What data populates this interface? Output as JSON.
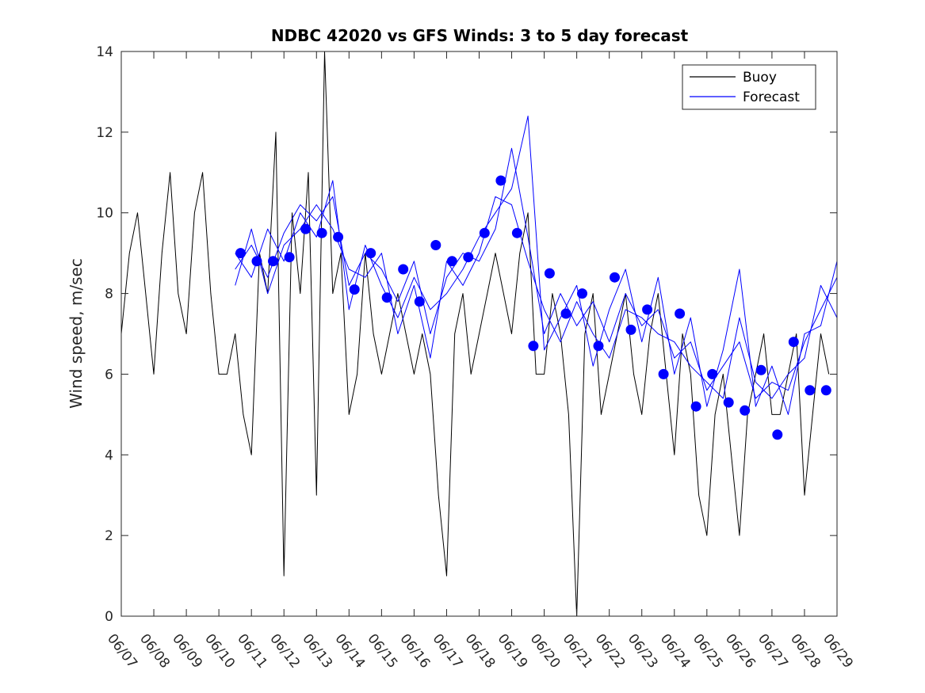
{
  "chart_data": {
    "type": "line",
    "title": "NDBC 42020 vs GFS Winds: 3 to 5 day forecast",
    "xlabel": "",
    "ylabel": "Wind speed, m/sec",
    "x_tick_labels": [
      "06/07",
      "06/08",
      "06/09",
      "06/10",
      "06/11",
      "06/12",
      "06/13",
      "06/14",
      "06/15",
      "06/16",
      "06/17",
      "06/18",
      "06/19",
      "06/20",
      "06/21",
      "06/22",
      "06/23",
      "06/24",
      "06/25",
      "06/26",
      "06/27",
      "06/28",
      "06/29"
    ],
    "y_ticks": [
      0,
      2,
      4,
      6,
      8,
      10,
      12,
      14
    ],
    "xlim": [
      "06/07",
      "06/29"
    ],
    "ylim": [
      0,
      14
    ],
    "grid": false,
    "legend": {
      "position": "top-right",
      "entries": [
        "Buoy",
        "Forecast"
      ]
    },
    "colors": {
      "buoy": "#000000",
      "forecast": "#0000ff",
      "markers": "#0000ff"
    },
    "series": [
      {
        "name": "Buoy",
        "style": "line",
        "x": [
          "06/07 00:00",
          "06/07 06:00",
          "06/07 12:00",
          "06/07 18:00",
          "06/08 00:00",
          "06/08 06:00",
          "06/08 12:00",
          "06/08 18:00",
          "06/09 00:00",
          "06/09 06:00",
          "06/09 12:00",
          "06/09 18:00",
          "06/10 00:00",
          "06/10 06:00",
          "06/10 12:00",
          "06/10 18:00",
          "06/11 00:00",
          "06/11 06:00",
          "06/11 12:00",
          "06/11 18:00",
          "06/12 00:00",
          "06/12 06:00",
          "06/12 12:00",
          "06/12 18:00",
          "06/13 00:00",
          "06/13 06:00",
          "06/13 12:00",
          "06/13 18:00",
          "06/14 00:00",
          "06/14 06:00",
          "06/14 12:00",
          "06/14 18:00",
          "06/15 00:00",
          "06/15 06:00",
          "06/15 12:00",
          "06/15 18:00",
          "06/16 00:00",
          "06/16 06:00",
          "06/16 12:00",
          "06/16 18:00",
          "06/17 00:00",
          "06/17 06:00",
          "06/17 12:00",
          "06/17 18:00",
          "06/18 00:00",
          "06/18 06:00",
          "06/18 12:00",
          "06/18 18:00",
          "06/19 00:00",
          "06/19 06:00",
          "06/19 12:00",
          "06/19 18:00",
          "06/20 00:00",
          "06/20 06:00",
          "06/20 12:00",
          "06/20 18:00",
          "06/21 00:00",
          "06/21 06:00",
          "06/21 12:00",
          "06/21 18:00",
          "06/22 00:00",
          "06/22 06:00",
          "06/22 12:00",
          "06/22 18:00",
          "06/23 00:00",
          "06/23 06:00",
          "06/23 12:00",
          "06/23 18:00",
          "06/24 00:00",
          "06/24 06:00",
          "06/24 12:00",
          "06/24 18:00",
          "06/25 00:00",
          "06/25 06:00",
          "06/25 12:00",
          "06/25 18:00",
          "06/26 00:00",
          "06/26 06:00",
          "06/26 12:00",
          "06/26 18:00",
          "06/27 00:00",
          "06/27 06:00",
          "06/27 12:00",
          "06/27 18:00",
          "06/28 00:00",
          "06/28 06:00",
          "06/28 12:00",
          "06/28 18:00"
        ],
        "values": [
          7,
          9,
          10,
          8,
          6,
          9,
          11,
          8,
          7,
          10,
          11,
          8,
          6,
          6,
          7,
          5,
          4,
          9,
          8,
          12,
          1,
          10,
          8,
          11,
          3,
          14,
          8,
          9,
          5,
          6,
          9,
          7,
          6,
          7,
          8,
          7,
          6,
          7,
          6,
          3,
          1,
          7,
          8,
          6,
          7,
          8,
          9,
          8,
          7,
          9,
          10,
          6,
          6,
          8,
          7,
          5,
          0,
          7,
          8,
          5,
          6,
          7,
          8,
          6,
          5,
          7,
          8,
          6,
          4,
          7,
          6,
          3,
          2,
          5,
          6,
          4,
          2,
          5,
          6,
          7,
          5,
          5,
          6,
          7,
          3,
          5,
          7,
          6
        ]
      },
      {
        "name": "Forecast",
        "style": "line",
        "x": [
          "06/10 12:00",
          "06/11 00:00",
          "06/11 12:00",
          "06/12 00:00",
          "06/12 12:00",
          "06/13 00:00",
          "06/13 12:00",
          "06/14 00:00",
          "06/14 12:00",
          "06/15 00:00",
          "06/15 12:00",
          "06/16 00:00",
          "06/16 12:00",
          "06/17 00:00",
          "06/17 12:00",
          "06/18 00:00",
          "06/18 12:00",
          "06/19 00:00",
          "06/19 12:00",
          "06/20 00:00",
          "06/20 12:00",
          "06/21 00:00",
          "06/21 12:00",
          "06/22 00:00",
          "06/22 12:00",
          "06/23 00:00",
          "06/23 12:00",
          "06/24 00:00",
          "06/24 12:00",
          "06/25 00:00",
          "06/25 12:00",
          "06/26 00:00",
          "06/26 12:00",
          "06/27 00:00",
          "06/27 12:00",
          "06/28 00:00",
          "06/28 12:00",
          "06/29 00:00"
        ],
        "values": [
          8.6,
          9.2,
          8.4,
          9.5,
          10.2,
          9.8,
          10.4,
          8.2,
          9.0,
          8.6,
          7.8,
          8.8,
          7.0,
          8.4,
          9.0,
          8.8,
          9.6,
          11.6,
          9.4,
          7.0,
          8.0,
          7.2,
          7.8,
          6.8,
          8.0,
          7.2,
          7.6,
          6.4,
          6.8,
          5.6,
          6.2,
          6.8,
          5.4,
          5.8,
          5.6,
          6.8,
          7.6,
          8.4
        ]
      },
      {
        "name": "",
        "style": "line",
        "x": [
          "06/10 12:00",
          "06/11 00:00",
          "06/11 12:00",
          "06/12 00:00",
          "06/12 12:00",
          "06/13 00:00",
          "06/13 12:00",
          "06/14 00:00",
          "06/14 12:00",
          "06/15 00:00",
          "06/15 12:00",
          "06/16 00:00",
          "06/16 12:00",
          "06/17 00:00",
          "06/17 12:00",
          "06/18 00:00",
          "06/18 12:00",
          "06/19 00:00",
          "06/19 12:00",
          "06/20 00:00",
          "06/20 12:00",
          "06/21 00:00",
          "06/21 12:00",
          "06/22 00:00",
          "06/22 12:00",
          "06/23 00:00",
          "06/23 12:00",
          "06/24 00:00",
          "06/24 12:00",
          "06/25 00:00",
          "06/25 12:00",
          "06/26 00:00",
          "06/26 12:00",
          "06/27 00:00",
          "06/27 12:00",
          "06/28 00:00",
          "06/28 12:00",
          "06/29 00:00"
        ],
        "values": [
          9.0,
          8.4,
          9.6,
          8.8,
          10.0,
          9.4,
          10.8,
          7.6,
          9.2,
          8.2,
          7.4,
          8.4,
          7.6,
          8.0,
          8.6,
          9.4,
          10.0,
          10.6,
          12.4,
          6.6,
          7.4,
          8.2,
          6.2,
          7.6,
          8.6,
          6.8,
          8.4,
          6.0,
          7.4,
          5.2,
          6.6,
          8.6,
          5.2,
          6.2,
          5.0,
          7.0,
          7.2,
          8.8
        ]
      },
      {
        "name": "",
        "style": "line",
        "x": [
          "06/10 12:00",
          "06/11 00:00",
          "06/11 12:00",
          "06/12 00:00",
          "06/12 12:00",
          "06/13 00:00",
          "06/13 12:00",
          "06/14 00:00",
          "06/14 12:00",
          "06/15 00:00",
          "06/15 12:00",
          "06/16 00:00",
          "06/16 12:00",
          "06/17 00:00",
          "06/17 12:00",
          "06/18 00:00",
          "06/18 12:00",
          "06/19 00:00",
          "06/19 12:00",
          "06/20 00:00",
          "06/20 12:00",
          "06/21 00:00",
          "06/21 12:00",
          "06/22 00:00",
          "06/22 12:00",
          "06/23 00:00",
          "06/23 12:00",
          "06/24 00:00",
          "06/24 12:00",
          "06/25 00:00",
          "06/25 12:00",
          "06/26 00:00",
          "06/26 12:00",
          "06/27 00:00",
          "06/27 12:00",
          "06/28 00:00",
          "06/28 12:00",
          "06/29 00:00"
        ],
        "values": [
          8.2,
          9.6,
          8.0,
          9.2,
          9.6,
          10.2,
          9.6,
          8.6,
          8.4,
          9.0,
          7.0,
          8.2,
          6.4,
          8.8,
          8.2,
          9.0,
          10.4,
          10.2,
          8.8,
          7.6,
          6.8,
          7.8,
          7.0,
          6.4,
          7.6,
          7.4,
          7.0,
          6.8,
          6.2,
          5.8,
          5.4,
          7.4,
          5.8,
          5.4,
          6.0,
          6.4,
          8.2,
          7.4
        ]
      },
      {
        "name": "",
        "style": "markers",
        "x": [
          "06/10 16:00",
          "06/11 04:00",
          "06/11 16:00",
          "06/12 04:00",
          "06/12 16:00",
          "06/13 04:00",
          "06/13 16:00",
          "06/14 04:00",
          "06/14 16:00",
          "06/15 04:00",
          "06/15 16:00",
          "06/16 04:00",
          "06/16 16:00",
          "06/17 04:00",
          "06/17 16:00",
          "06/18 04:00",
          "06/18 16:00",
          "06/19 04:00",
          "06/19 16:00",
          "06/20 04:00",
          "06/20 16:00",
          "06/21 04:00",
          "06/21 16:00",
          "06/22 04:00",
          "06/22 16:00",
          "06/23 04:00",
          "06/23 16:00",
          "06/24 04:00",
          "06/24 16:00",
          "06/25 04:00",
          "06/25 16:00",
          "06/26 04:00",
          "06/26 16:00",
          "06/27 04:00",
          "06/27 16:00",
          "06/28 04:00",
          "06/28 16:00"
        ],
        "values": [
          9.0,
          8.8,
          8.8,
          8.9,
          9.6,
          9.5,
          9.4,
          8.1,
          9.0,
          7.9,
          8.6,
          7.8,
          9.2,
          8.8,
          8.9,
          9.5,
          10.8,
          9.5,
          6.7,
          8.5,
          7.5,
          8.0,
          6.7,
          8.4,
          7.1,
          7.6,
          6.0,
          7.5,
          5.2,
          6.0,
          5.3,
          5.1,
          6.1,
          4.5,
          6.8,
          5.6,
          5.6
        ]
      }
    ]
  }
}
